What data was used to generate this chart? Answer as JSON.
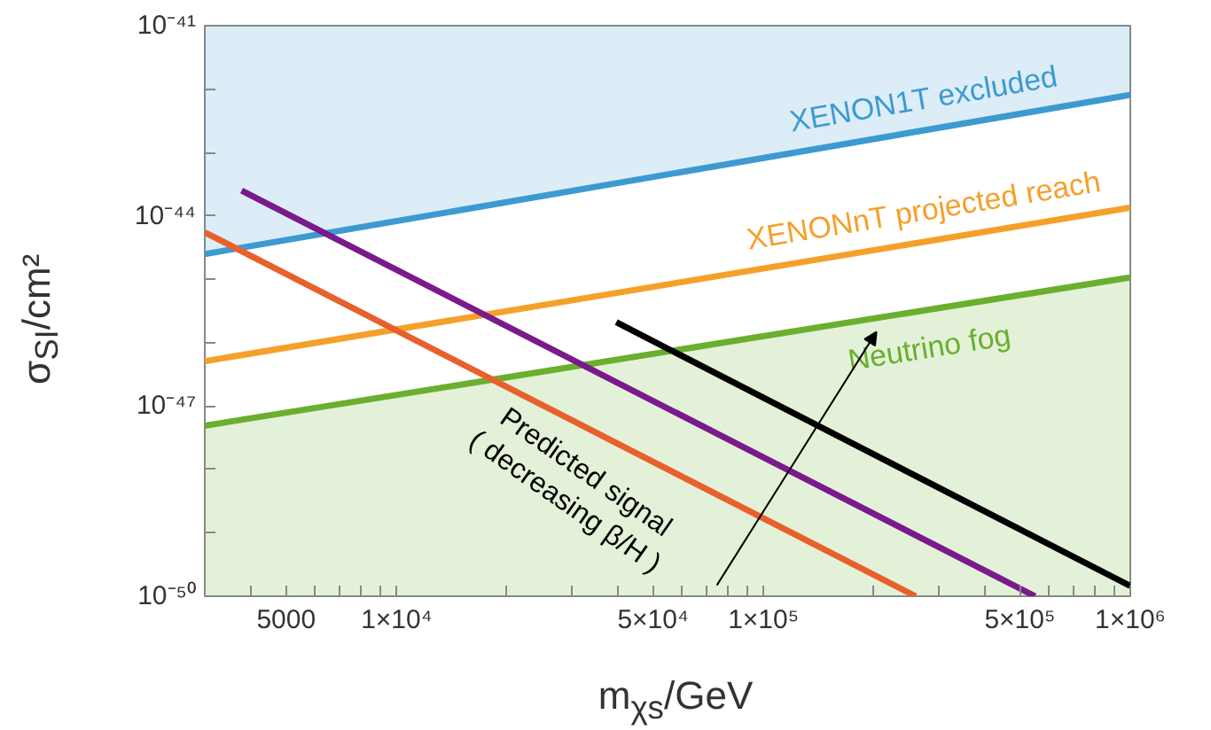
{
  "chart_data": {
    "type": "line",
    "xlabel": "m$_{χs}$/GeV",
    "ylabel": "σ$_{SI}$/cm²",
    "log": "xy",
    "grid": false,
    "marker": "none",
    "line_style": "solid",
    "xlim": [
      3000,
      1000000
    ],
    "ylim": [
      1e-50,
      1e-41
    ],
    "xticks": [
      {
        "value": 4000,
        "label": null
      },
      {
        "value": 5000,
        "label": "5000"
      },
      {
        "value": 6000,
        "label": null
      },
      {
        "value": 7000,
        "label": null
      },
      {
        "value": 8000,
        "label": null
      },
      {
        "value": 9000,
        "label": null
      },
      {
        "value": 10000,
        "label": "1×10⁴"
      },
      {
        "value": 20000,
        "label": null
      },
      {
        "value": 30000,
        "label": null
      },
      {
        "value": 40000,
        "label": null
      },
      {
        "value": 50000,
        "label": "5×10⁴"
      },
      {
        "value": 60000,
        "label": null
      },
      {
        "value": 70000,
        "label": null
      },
      {
        "value": 80000,
        "label": null
      },
      {
        "value": 90000,
        "label": null
      },
      {
        "value": 100000,
        "label": "1×10⁵"
      },
      {
        "value": 200000,
        "label": null
      },
      {
        "value": 300000,
        "label": null
      },
      {
        "value": 400000,
        "label": null
      },
      {
        "value": 500000,
        "label": "5×10⁵"
      },
      {
        "value": 600000,
        "label": null
      },
      {
        "value": 700000,
        "label": null
      },
      {
        "value": 800000,
        "label": null
      },
      {
        "value": 900000,
        "label": null
      },
      {
        "value": 1000000,
        "label": "1×10⁶"
      }
    ],
    "yticks": [
      {
        "value": 1e-50,
        "label": "10⁻⁵⁰"
      },
      {
        "value": 1e-49,
        "label": null
      },
      {
        "value": 1e-48,
        "label": null
      },
      {
        "value": 1e-47,
        "label": "10⁻⁴⁷"
      },
      {
        "value": 1e-46,
        "label": null
      },
      {
        "value": 1e-45,
        "label": null
      },
      {
        "value": 1e-44,
        "label": "10⁻⁴⁴"
      },
      {
        "value": 1e-43,
        "label": null
      },
      {
        "value": 1e-42,
        "label": null
      },
      {
        "value": 1e-41,
        "label": "10⁻⁴¹"
      }
    ],
    "series": [
      {
        "name": "XENON1T excluded",
        "color": "#3d9ad1",
        "x": [
          3000,
          1000000
        ],
        "values": [
          2.5e-45,
          8.1e-43
        ],
        "lower": [
          2.5e-45,
          8.1e-43
        ],
        "upper": [
          1e-41,
          1e-41
        ]
      },
      {
        "name": "XENONnT projected reach",
        "color": "#f5a02a",
        "x": [
          3000,
          1000000
        ],
        "values": [
          5.1e-47,
          1.35e-44
        ]
      },
      {
        "name": "Neutrino fog",
        "color": "#6aaf2e",
        "x": [
          3000,
          1000000
        ],
        "values": [
          4.9e-48,
          1.07e-45
        ],
        "lower": [
          1e-50,
          1e-50
        ],
        "upper": [
          4.9e-48,
          1.07e-45
        ]
      },
      {
        "color": "#e8602c",
        "x": [
          3000,
          260000
        ],
        "values": [
          5.5e-45,
          1e-50
        ]
      },
      {
        "color": "#7a1a8c",
        "x": [
          3780,
          550000
        ],
        "values": [
          2.5e-44,
          1e-50
        ]
      },
      {
        "color": "#000000",
        "x": [
          39700,
          1000000
        ],
        "values": [
          2.1e-46,
          1.45e-50
        ]
      }
    ],
    "annotations": [
      "Predicted signal\n( decreasing β/H )"
    ]
  }
}
